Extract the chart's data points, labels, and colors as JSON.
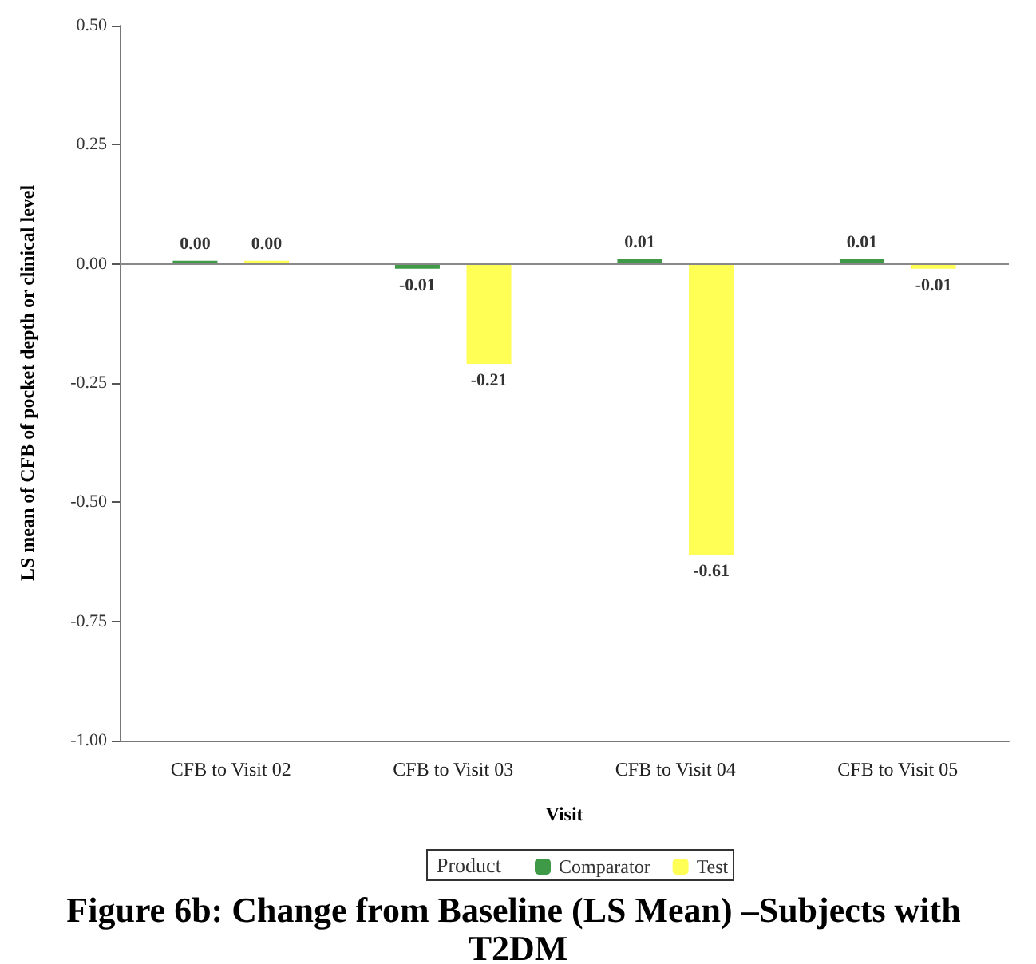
{
  "chart_data": {
    "type": "bar",
    "title": "Figure 6b: Change from Baseline (LS Mean) –Subjects with T2DM",
    "xlabel": "Visit",
    "ylabel": "LS mean of CFB of pocket depth or clinical level",
    "legend_title": "Product",
    "categories": [
      "CFB to Visit 02",
      "CFB to Visit 03",
      "CFB to Visit 04",
      "CFB to Visit 05"
    ],
    "series": [
      {
        "name": "Comparator",
        "color": "#3f9a48",
        "values": [
          0.0,
          -0.01,
          0.01,
          0.01
        ],
        "value_labels": [
          "0.00",
          "-0.01",
          "0.01",
          "0.01"
        ]
      },
      {
        "name": "Test",
        "color": "#ffff55",
        "values": [
          0.0,
          -0.21,
          -0.61,
          -0.01
        ],
        "value_labels": [
          "0.00",
          "-0.21",
          "-0.61",
          "-0.01"
        ]
      }
    ],
    "ylim": [
      -1.0,
      0.5
    ],
    "yticks": [
      {
        "value": -1.0,
        "label": "-1.00"
      },
      {
        "value": -0.75,
        "label": "-0.75"
      },
      {
        "value": -0.5,
        "label": "-0.50"
      },
      {
        "value": -0.25,
        "label": "-0.25"
      },
      {
        "value": 0,
        "label": "0.00"
      },
      {
        "value": 0.25,
        "label": "0.25"
      },
      {
        "value": 0.5,
        "label": "0.50"
      }
    ],
    "ref_lines": [
      {
        "axis": "y",
        "value": 0,
        "color": "#888888"
      }
    ],
    "legend": "bottom"
  }
}
